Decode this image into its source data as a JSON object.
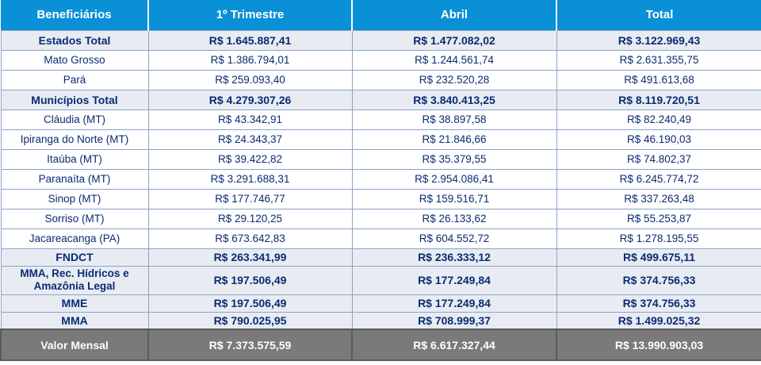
{
  "headers": [
    "Beneficiários",
    "1º Trimestre",
    "Abril",
    "Total"
  ],
  "rows": [
    {
      "kind": "subtotal",
      "label": "Estados Total",
      "q1": "R$ 1.645.887,41",
      "abril": "R$ 1.477.082,02",
      "total": "R$ 3.122.969,43"
    },
    {
      "kind": "normal",
      "label": "Mato Grosso",
      "q1": "R$ 1.386.794,01",
      "abril": "R$ 1.244.561,74",
      "total": "R$ 2.631.355,75"
    },
    {
      "kind": "normal",
      "label": "Pará",
      "q1": "R$ 259.093,40",
      "abril": "R$ 232.520,28",
      "total": "R$ 491.613,68"
    },
    {
      "kind": "subtotal",
      "label": "Municípios Total",
      "q1": "R$ 4.279.307,26",
      "abril": "R$ 3.840.413,25",
      "total": "R$ 8.119.720,51"
    },
    {
      "kind": "normal",
      "label": "Cláudia (MT)",
      "q1": "R$ 43.342,91",
      "abril": "R$ 38.897,58",
      "total": "R$ 82.240,49"
    },
    {
      "kind": "normal",
      "label": "Ipiranga do Norte (MT)",
      "q1": "R$ 24.343,37",
      "abril": "R$ 21.846,66",
      "total": "R$ 46.190,03"
    },
    {
      "kind": "normal",
      "label": "Itaúba (MT)",
      "q1": "R$ 39.422,82",
      "abril": "R$ 35.379,55",
      "total": "R$ 74.802,37"
    },
    {
      "kind": "normal",
      "label": "Paranaíta (MT)",
      "q1": "R$ 3.291.688,31",
      "abril": "R$ 2.954.086,41",
      "total": "R$ 6.245.774,72"
    },
    {
      "kind": "normal",
      "label": "Sinop (MT)",
      "q1": "R$ 177.746,77",
      "abril": "R$ 159.516,71",
      "total": "R$ 337.263,48"
    },
    {
      "kind": "normal",
      "label": "Sorriso (MT)",
      "q1": "R$ 29.120,25",
      "abril": "R$ 26.133,62",
      "total": "R$ 55.253,87"
    },
    {
      "kind": "normal",
      "label": "Jacareacanga (PA)",
      "q1": "R$ 673.642,83",
      "abril": "R$ 604.552,72",
      "total": "R$ 1.278.195,55"
    },
    {
      "kind": "subtotal",
      "label": "FNDCT",
      "q1": "R$ 263.341,99",
      "abril": "R$ 236.333,12",
      "total": "R$ 499.675,11"
    },
    {
      "kind": "subtotal",
      "label": "MMA, Rec. Hídricos e Amazônia Legal",
      "q1": "R$ 197.506,49",
      "abril": "R$ 177.249,84",
      "total": "R$ 374.756,33"
    },
    {
      "kind": "subtotal",
      "label": "MME",
      "q1": "R$ 197.506,49",
      "abril": "R$ 177.249,84",
      "total": "R$ 374.756,33"
    },
    {
      "kind": "subtotal",
      "label": "MMA",
      "q1": "R$ 790.025,95",
      "abril": "R$ 708.999,37",
      "total": "R$ 1.499.025,32"
    },
    {
      "kind": "total",
      "label": "Valor Mensal",
      "q1": "R$ 7.373.575,59",
      "abril": "R$ 6.617.327,44",
      "total": "R$ 13.990.903,03"
    }
  ]
}
